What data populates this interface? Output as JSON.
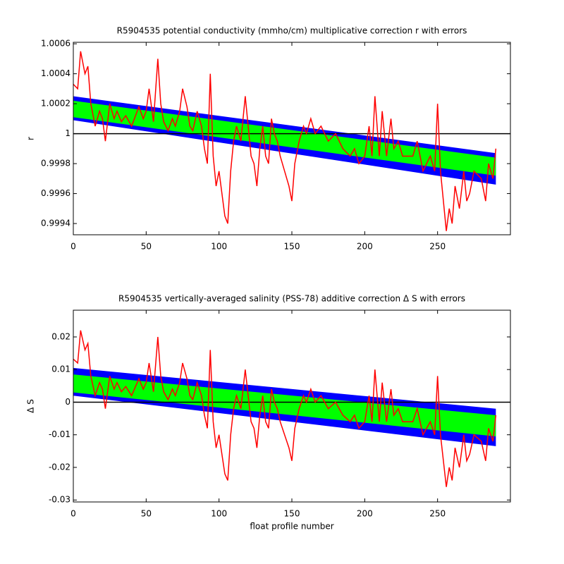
{
  "chart_data": [
    {
      "type": "line",
      "title": "R5904535 potential conductivity (mmho/cm) multiplicative correction r with errors",
      "ylabel": "r",
      "x": [
        0,
        3,
        5,
        8,
        10,
        12,
        15,
        18,
        20,
        22,
        25,
        28,
        30,
        33,
        36,
        40,
        45,
        48,
        50,
        52,
        55,
        58,
        60,
        62,
        65,
        68,
        70,
        73,
        75,
        78,
        80,
        82,
        85,
        88,
        90,
        92,
        94,
        96,
        98,
        100,
        102,
        104,
        106,
        108,
        110,
        112,
        115,
        118,
        120,
        122,
        124,
        126,
        128,
        130,
        132,
        134,
        136,
        138,
        140,
        142,
        145,
        148,
        150,
        152,
        155,
        158,
        160,
        163,
        166,
        170,
        175,
        180,
        185,
        190,
        193,
        196,
        200,
        203,
        205,
        207,
        210,
        212,
        215,
        218,
        220,
        223,
        226,
        230,
        233,
        236,
        240,
        245,
        248,
        250,
        252,
        254,
        256,
        258,
        260,
        262,
        265,
        268,
        270,
        272,
        275,
        280,
        283,
        285,
        288,
        290
      ],
      "series": [
        {
          "color": "#ff0000",
          "values": [
            1.00033,
            1.0003,
            1.00055,
            1.0004,
            1.00045,
            1.0002,
            1.00005,
            1.00015,
            1.0001,
            0.99995,
            1.0002,
            1.0001,
            1.00015,
            1.00008,
            1.00012,
            1.00005,
            1.00018,
            1.0001,
            1.00015,
            1.0003,
            1.00008,
            1.0005,
            1.0002,
            1.00008,
            1.00002,
            1.0001,
            1.00005,
            1.00015,
            1.0003,
            1.00018,
            1.00005,
            1.00002,
            1.00015,
            1.00005,
            0.9999,
            0.9998,
            1.0004,
            0.99985,
            0.99965,
            0.99975,
            0.9996,
            0.99945,
            0.9994,
            0.99975,
            0.99995,
            1.00005,
            0.99995,
            1.00025,
            1.00005,
            0.99985,
            0.9998,
            0.99965,
            0.9999,
            1.00005,
            0.99985,
            0.9998,
            1.0001,
            1,
            0.99995,
            0.99985,
            0.99975,
            0.99965,
            0.99955,
            0.9998,
            0.99995,
            1.00005,
            1,
            1.0001,
            1,
            1.00005,
            0.99995,
            1,
            0.9999,
            0.99985,
            0.9999,
            0.9998,
            0.99985,
            1.00005,
            0.99985,
            1.00025,
            0.99985,
            1.00015,
            0.99985,
            1.0001,
            0.9999,
            0.99995,
            0.99985,
            0.99985,
            0.99985,
            0.99995,
            0.99975,
            0.99985,
            0.99975,
            1.0002,
            0.99975,
            0.99955,
            0.99935,
            0.9995,
            0.9994,
            0.99965,
            0.9995,
            0.99975,
            0.99955,
            0.9996,
            0.99975,
            0.9997,
            0.99955,
            0.9998,
            0.9997,
            0.9999
          ]
        }
      ],
      "bands": [
        {
          "color": "#0000ff",
          "x": [
            0,
            290
          ],
          "upper": [
            1.00025,
            0.99987
          ],
          "lower": [
            1.00009,
            0.99966
          ]
        },
        {
          "color": "#00ff00",
          "x": [
            0,
            290
          ],
          "upper": [
            1.00022,
            0.99984
          ],
          "lower": [
            1.00011,
            0.99972
          ]
        }
      ],
      "reference_line": 1,
      "xlim": [
        0,
        300
      ],
      "xticks": [
        0,
        50,
        100,
        150,
        200,
        250
      ],
      "ylim": [
        0.999325,
        1.00061
      ],
      "yticks": [
        0.9994,
        0.9996,
        0.9998,
        1,
        1.0002,
        1.0004,
        1.0006
      ]
    },
    {
      "type": "line",
      "title": "R5904535 vertically-averaged salinity (PSS-78) additive correction Δ S with errors",
      "xlabel": "float profile number",
      "ylabel": "Δ S",
      "x": [
        0,
        3,
        5,
        8,
        10,
        12,
        15,
        18,
        20,
        22,
        25,
        28,
        30,
        33,
        36,
        40,
        45,
        48,
        50,
        52,
        55,
        58,
        60,
        62,
        65,
        68,
        70,
        73,
        75,
        78,
        80,
        82,
        85,
        88,
        90,
        92,
        94,
        96,
        98,
        100,
        102,
        104,
        106,
        108,
        110,
        112,
        115,
        118,
        120,
        122,
        124,
        126,
        128,
        130,
        132,
        134,
        136,
        138,
        140,
        142,
        145,
        148,
        150,
        152,
        155,
        158,
        160,
        163,
        166,
        170,
        175,
        180,
        185,
        190,
        193,
        196,
        200,
        203,
        205,
        207,
        210,
        212,
        215,
        218,
        220,
        223,
        226,
        230,
        233,
        236,
        240,
        245,
        248,
        250,
        252,
        254,
        256,
        258,
        260,
        262,
        265,
        268,
        270,
        272,
        275,
        280,
        283,
        285,
        288,
        290
      ],
      "series": [
        {
          "color": "#ff0000",
          "values": [
            0.0132,
            0.012,
            0.022,
            0.016,
            0.018,
            0.008,
            0.002,
            0.006,
            0.004,
            -0.002,
            0.008,
            0.004,
            0.006,
            0.0032,
            0.0048,
            0.002,
            0.0072,
            0.004,
            0.006,
            0.012,
            0.0032,
            0.02,
            0.008,
            0.0032,
            0.0008,
            0.004,
            0.002,
            0.006,
            0.012,
            0.0072,
            0.002,
            0.0008,
            0.006,
            0.002,
            -0.004,
            -0.008,
            0.016,
            -0.006,
            -0.014,
            -0.01,
            -0.016,
            -0.022,
            -0.024,
            -0.01,
            -0.002,
            0.002,
            -0.002,
            0.01,
            0.002,
            -0.006,
            -0.008,
            -0.014,
            -0.004,
            0.002,
            -0.006,
            -0.008,
            0.004,
            0,
            -0.002,
            -0.006,
            -0.01,
            -0.014,
            -0.018,
            -0.008,
            -0.002,
            0.002,
            0,
            0.004,
            0,
            0.002,
            -0.002,
            0,
            -0.004,
            -0.006,
            -0.004,
            -0.008,
            -0.006,
            0.002,
            -0.006,
            0.01,
            -0.006,
            0.006,
            -0.006,
            0.004,
            -0.004,
            -0.002,
            -0.006,
            -0.006,
            -0.006,
            -0.002,
            -0.01,
            -0.006,
            -0.01,
            0.008,
            -0.01,
            -0.018,
            -0.026,
            -0.02,
            -0.024,
            -0.014,
            -0.02,
            -0.01,
            -0.018,
            -0.016,
            -0.01,
            -0.012,
            -0.018,
            -0.008,
            -0.012,
            -0.004
          ]
        }
      ],
      "bands": [
        {
          "color": "#0000ff",
          "x": [
            0,
            290
          ],
          "upper": [
            0.0105,
            -0.002
          ],
          "lower": [
            0.002,
            -0.0135
          ]
        },
        {
          "color": "#00ff00",
          "x": [
            0,
            290
          ],
          "upper": [
            0.0085,
            -0.004
          ],
          "lower": [
            0.003,
            -0.0105
          ]
        }
      ],
      "reference_line": 0,
      "xlim": [
        0,
        300
      ],
      "xticks": [
        0,
        50,
        100,
        150,
        200,
        250
      ],
      "ylim": [
        -0.0306,
        0.0282
      ],
      "yticks": [
        -0.03,
        -0.02,
        -0.01,
        0,
        0.01,
        0.02
      ]
    }
  ]
}
